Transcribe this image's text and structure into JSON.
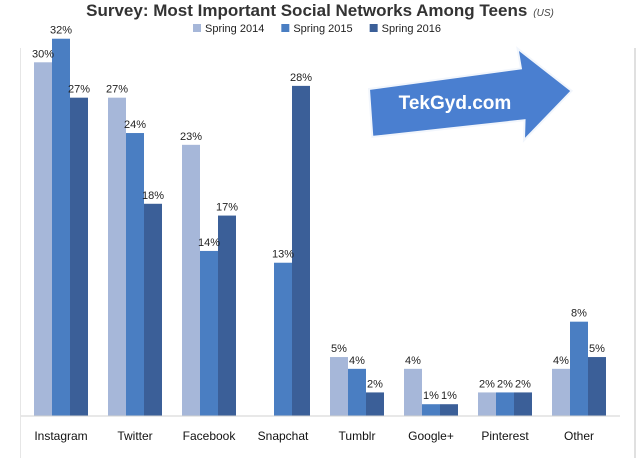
{
  "chart_data": {
    "type": "bar",
    "title": "Survey: Most Important Social Networks Among Teens",
    "subtitle": "(US)",
    "categories": [
      "Instagram",
      "Twitter",
      "Facebook",
      "Snapchat",
      "Tumblr",
      "Google+",
      "Pinterest",
      "Other"
    ],
    "series": [
      {
        "name": "Spring 2014",
        "color": "#a6b7d9",
        "values": [
          30,
          27,
          23,
          null,
          5,
          4,
          2,
          4
        ]
      },
      {
        "name": "Spring 2015",
        "color": "#4a7ec2",
        "values": [
          32,
          24,
          14,
          13,
          4,
          1,
          2,
          8
        ]
      },
      {
        "name": "Spring 2016",
        "color": "#3b5f98",
        "values": [
          27,
          18,
          17,
          28,
          2,
          1,
          2,
          5
        ]
      }
    ],
    "value_suffix": "%",
    "ylim": [
      0,
      35
    ],
    "grid": false,
    "legend_position": "top-center"
  },
  "watermark": {
    "text": "TekGyd.com",
    "color": "#4a7fd0"
  }
}
